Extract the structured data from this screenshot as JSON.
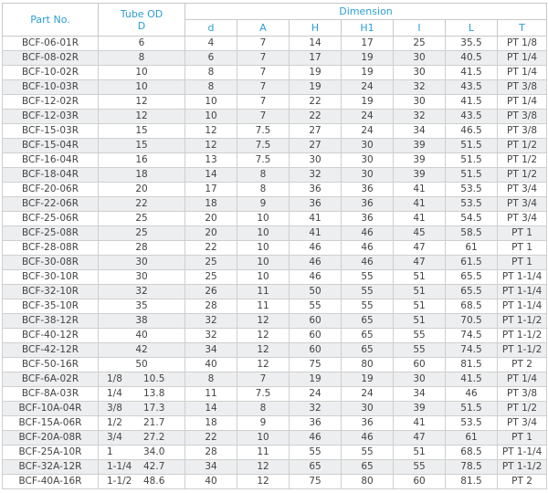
{
  "table": {
    "header": {
      "part": "Part No.",
      "tube": [
        "Tube OD",
        "D"
      ],
      "dimension": "Dimension",
      "columns": [
        "d",
        "A",
        "H",
        "H1",
        "I",
        "L",
        "T"
      ]
    },
    "rows": [
      [
        "BCF-06-01R",
        "6",
        "4",
        "7",
        "14",
        "17",
        "25",
        "35.5",
        "PT 1/8"
      ],
      [
        "BCF-08-02R",
        "8",
        "6",
        "7",
        "17",
        "19",
        "30",
        "40.5",
        "PT 1/4"
      ],
      [
        "BCF-10-02R",
        "10",
        "8",
        "7",
        "19",
        "19",
        "30",
        "41.5",
        "PT 1/4"
      ],
      [
        "BCF-10-03R",
        "10",
        "8",
        "7",
        "19",
        "24",
        "32",
        "43.5",
        "PT 3/8"
      ],
      [
        "BCF-12-02R",
        "12",
        "10",
        "7",
        "22",
        "19",
        "30",
        "41.5",
        "PT 1/4"
      ],
      [
        "BCF-12-03R",
        "12",
        "10",
        "7",
        "22",
        "24",
        "32",
        "43.5",
        "PT 3/8"
      ],
      [
        "BCF-15-03R",
        "15",
        "12",
        "7.5",
        "27",
        "24",
        "34",
        "46.5",
        "PT 3/8"
      ],
      [
        "BCF-15-04R",
        "15",
        "12",
        "7.5",
        "27",
        "30",
        "39",
        "51.5",
        "PT 1/2"
      ],
      [
        "BCF-16-04R",
        "16",
        "13",
        "7.5",
        "30",
        "30",
        "39",
        "51.5",
        "PT 1/2"
      ],
      [
        "BCF-18-04R",
        "18",
        "14",
        "8",
        "32",
        "30",
        "39",
        "51.5",
        "PT 1/2"
      ],
      [
        "BCF-20-06R",
        "20",
        "17",
        "8",
        "36",
        "36",
        "41",
        "53.5",
        "PT 3/4"
      ],
      [
        "BCF-22-06R",
        "22",
        "18",
        "9",
        "36",
        "36",
        "41",
        "53.5",
        "PT 3/4"
      ],
      [
        "BCF-25-06R",
        "25",
        "20",
        "10",
        "41",
        "36",
        "41",
        "54.5",
        "PT 3/4"
      ],
      [
        "BCF-25-08R",
        "25",
        "20",
        "10",
        "41",
        "46",
        "45",
        "58.5",
        "PT 1"
      ],
      [
        "BCF-28-08R",
        "28",
        "22",
        "10",
        "46",
        "46",
        "47",
        "61",
        "PT 1"
      ],
      [
        "BCF-30-08R",
        "30",
        "25",
        "10",
        "46",
        "46",
        "47",
        "61.5",
        "PT 1"
      ],
      [
        "BCF-30-10R",
        "30",
        "25",
        "10",
        "46",
        "55",
        "51",
        "65.5",
        "PT 1-1/4"
      ],
      [
        "BCF-32-10R",
        "32",
        "26",
        "11",
        "50",
        "55",
        "51",
        "65.5",
        "PT 1-1/4"
      ],
      [
        "BCF-35-10R",
        "35",
        "28",
        "11",
        "55",
        "55",
        "51",
        "68.5",
        "PT 1-1/4"
      ],
      [
        "BCF-38-12R",
        "38",
        "32",
        "12",
        "60",
        "65",
        "51",
        "70.5",
        "PT 1-1/2"
      ],
      [
        "BCF-40-12R",
        "40",
        "32",
        "12",
        "60",
        "65",
        "55",
        "74.5",
        "PT 1-1/2"
      ],
      [
        "BCF-42-12R",
        "42",
        "34",
        "12",
        "60",
        "65",
        "55",
        "74.5",
        "PT 1-1/2"
      ],
      [
        "BCF-50-16R",
        "50",
        "40",
        "12",
        "75",
        "80",
        "60",
        "81.5",
        "PT 2"
      ],
      [
        "BCF-6A-02R",
        [
          "1/8",
          "10.5"
        ],
        "8",
        "7",
        "19",
        "19",
        "30",
        "41.5",
        "PT 1/4"
      ],
      [
        "BCF-8A-03R",
        [
          "1/4",
          "13.8"
        ],
        "11",
        "7.5",
        "24",
        "24",
        "34",
        "46",
        "PT 3/8"
      ],
      [
        "BCF-10A-04R",
        [
          "3/8",
          "17.3"
        ],
        "14",
        "8",
        "32",
        "30",
        "39",
        "51.5",
        "PT 1/2"
      ],
      [
        "BCF-15A-06R",
        [
          "1/2",
          "21.7"
        ],
        "18",
        "9",
        "36",
        "36",
        "41",
        "53.5",
        "PT 3/4"
      ],
      [
        "BCF-20A-08R",
        [
          "3/4",
          "27.2"
        ],
        "22",
        "10",
        "46",
        "46",
        "47",
        "61",
        "PT 1"
      ],
      [
        "BCF-25A-10R",
        [
          "1",
          "34.0"
        ],
        "28",
        "11",
        "55",
        "55",
        "51",
        "68.5",
        "PT 1-1/4"
      ],
      [
        "BCF-32A-12R",
        [
          "1-1/4",
          "42.7"
        ],
        "34",
        "12",
        "65",
        "65",
        "55",
        "78.5",
        "PT 1-1/2"
      ],
      [
        "BCF-40A-16R",
        [
          "1-1/2",
          "48.6"
        ],
        "40",
        "12",
        "75",
        "80",
        "60",
        "81.5",
        "PT 2"
      ]
    ]
  }
}
